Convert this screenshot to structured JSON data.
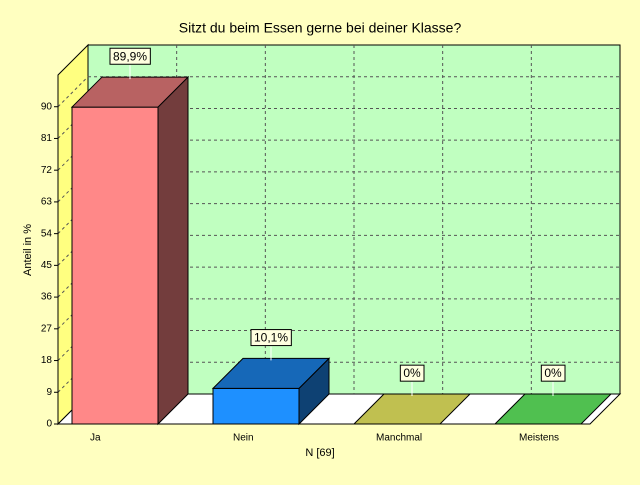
{
  "chart_data": {
    "type": "bar3d",
    "title": "Sitzt du beim Essen gerne bei deiner Klasse?",
    "x_label": "N [69]",
    "y_label": "Anteil in %",
    "categories": [
      "Ja",
      "Nein",
      "Manchmal",
      "Meistens"
    ],
    "values": [
      89.9,
      10.1,
      0,
      0
    ],
    "value_labels": [
      "89,9%",
      "10,1%",
      "0%",
      "0%"
    ],
    "colors": [
      "#ff8888",
      "#1e90ff",
      "#c0c050",
      "#50c050"
    ],
    "ylim": [
      0,
      99
    ],
    "yticks": [
      0,
      9,
      18,
      27,
      36,
      45,
      54,
      63,
      72,
      81,
      90
    ],
    "grid": true
  }
}
